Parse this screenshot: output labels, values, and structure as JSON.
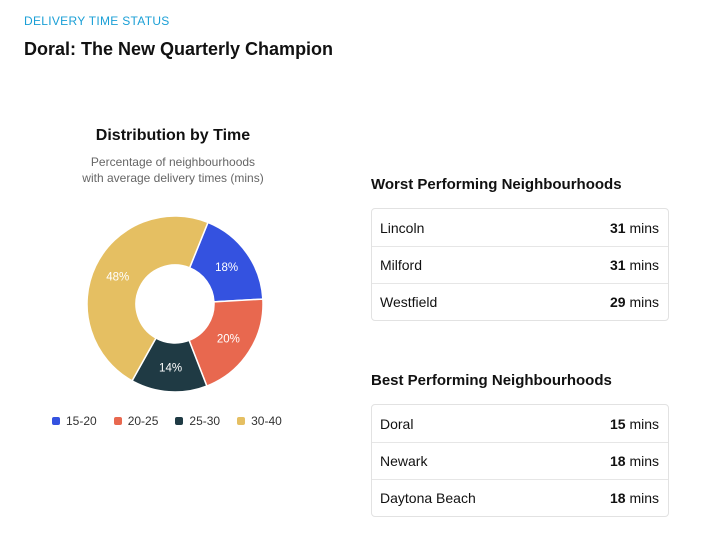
{
  "header": {
    "eyebrow": "DELIVERY TIME STATUS",
    "title": "Doral: The New Quarterly Champion"
  },
  "chart_data": {
    "type": "pie",
    "title": "Distribution by Time",
    "subtitle_line1": "Percentage of neighbourhoods",
    "subtitle_line2": "with average delivery times (mins)",
    "donut": true,
    "categories": [
      "15-20",
      "20-25",
      "25-30",
      "30-40"
    ],
    "values": [
      18,
      20,
      14,
      48
    ],
    "data_labels": [
      "18%",
      "20%",
      "14%",
      "48%"
    ],
    "colors": [
      "#3452e0",
      "#e8684f",
      "#1f3a44",
      "#e5bf62"
    ],
    "legend_position": "bottom"
  },
  "worst": {
    "title": "Worst Performing Neighbourhoods",
    "rows": [
      {
        "name": "Lincoln",
        "value": "31",
        "unit": "mins"
      },
      {
        "name": "Milford",
        "value": "31",
        "unit": "mins"
      },
      {
        "name": "Westfield",
        "value": "29",
        "unit": "mins"
      }
    ]
  },
  "best": {
    "title": "Best Performing Neighbourhoods",
    "rows": [
      {
        "name": "Doral",
        "value": "15",
        "unit": "mins"
      },
      {
        "name": "Newark",
        "value": "18",
        "unit": "mins"
      },
      {
        "name": "Daytona Beach",
        "value": "18",
        "unit": "mins"
      }
    ]
  }
}
